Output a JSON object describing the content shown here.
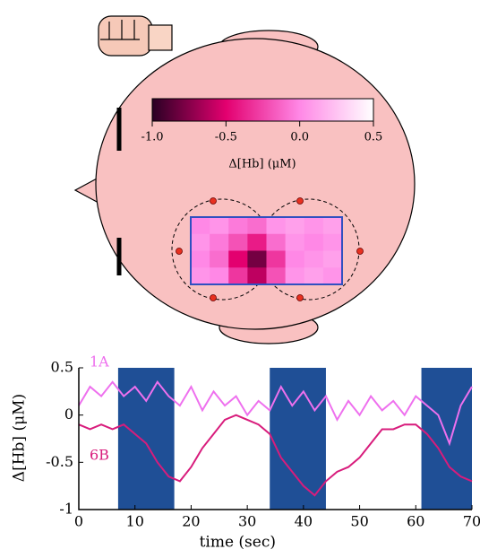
{
  "chart_data": [
    {
      "type": "heatmap",
      "colorbar": {
        "label": "Δ[Hb] (μM)",
        "lim": [
          -1,
          0.5
        ],
        "ticks": [
          {
            "value": -1,
            "label": "-1.0"
          },
          -0.5,
          {
            "value": 0,
            "label": "0.0"
          },
          0.5
        ],
        "colormap": [
          "#2a0024",
          "#e3006f",
          "#ff88e6",
          "#ffffff"
        ]
      },
      "values": [
        [
          0.0,
          0.05,
          -0.05,
          -0.1,
          0.05,
          0.1,
          0.05,
          0.1
        ],
        [
          0.05,
          -0.05,
          -0.2,
          -0.4,
          -0.1,
          0.05,
          0.0,
          0.05
        ],
        [
          0.0,
          -0.1,
          -0.5,
          -0.8,
          -0.3,
          0.0,
          0.05,
          0.1
        ],
        [
          0.05,
          0.0,
          -0.3,
          -0.6,
          -0.2,
          0.05,
          0.1,
          0.05
        ]
      ]
    },
    {
      "type": "line",
      "x_label": "time (sec)",
      "y_label": "Δ[Hb] (μM)",
      "x": [
        0,
        2,
        4,
        6,
        8,
        10,
        12,
        14,
        16,
        18,
        20,
        22,
        24,
        26,
        28,
        30,
        32,
        34,
        36,
        38,
        40,
        42,
        44,
        46,
        48,
        50,
        52,
        54,
        56,
        58,
        60,
        62,
        64,
        66,
        68,
        70
      ],
      "series": [
        {
          "name": "1A",
          "color": "#ee70ee",
          "values": [
            0.1,
            0.3,
            0.2,
            0.35,
            0.2,
            0.3,
            0.15,
            0.35,
            0.2,
            0.1,
            0.3,
            0.05,
            0.25,
            0.1,
            0.2,
            0.0,
            0.15,
            0.05,
            0.3,
            0.1,
            0.25,
            0.05,
            0.2,
            -0.05,
            0.15,
            0.0,
            0.2,
            0.05,
            0.15,
            0.0,
            0.2,
            0.1,
            0.0,
            -0.3,
            0.1,
            0.3
          ]
        },
        {
          "name": "6B",
          "color": "#d81c7c",
          "values": [
            -0.1,
            -0.15,
            -0.1,
            -0.15,
            -0.1,
            -0.2,
            -0.3,
            -0.5,
            -0.65,
            -0.7,
            -0.55,
            -0.35,
            -0.2,
            -0.05,
            0.0,
            -0.05,
            -0.1,
            -0.2,
            -0.45,
            -0.6,
            -0.75,
            -0.85,
            -0.7,
            -0.6,
            -0.55,
            -0.45,
            -0.3,
            -0.15,
            -0.15,
            -0.1,
            -0.1,
            -0.2,
            -0.35,
            -0.55,
            -0.65,
            -0.7
          ]
        }
      ],
      "shaded_intervals": [
        [
          7,
          17
        ],
        [
          34,
          44
        ],
        [
          61,
          70
        ]
      ],
      "shade_color": "#1f4f96",
      "xlim": [
        0,
        70
      ],
      "xticks": [
        0,
        10,
        20,
        30,
        40,
        50,
        60,
        70
      ],
      "ylim": [
        -1,
        0.5
      ],
      "yticks": [
        -1,
        -0.5,
        0,
        0.5
      ]
    }
  ]
}
